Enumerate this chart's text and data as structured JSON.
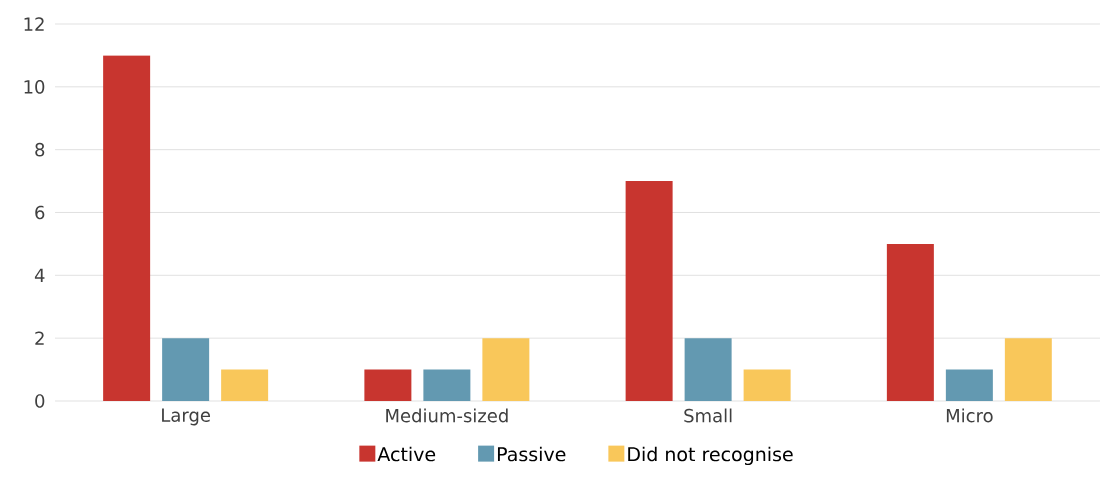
{
  "chart_data": {
    "type": "bar",
    "categories": [
      "Large",
      "Medium-sized",
      "Small",
      "Micro"
    ],
    "series": [
      {
        "name": "Active",
        "color": "#c8352f",
        "values": [
          11,
          1,
          7,
          5
        ]
      },
      {
        "name": "Passive",
        "color": "#6399b1",
        "values": [
          2,
          1,
          2,
          1
        ]
      },
      {
        "name": "Did not recognise",
        "color": "#f9c75a",
        "values": [
          1,
          2,
          1,
          2
        ]
      }
    ],
    "ylim": [
      0,
      12
    ],
    "yticks": [
      0,
      2,
      4,
      6,
      8,
      10,
      12
    ],
    "grid": "y",
    "legend": "bottom"
  }
}
